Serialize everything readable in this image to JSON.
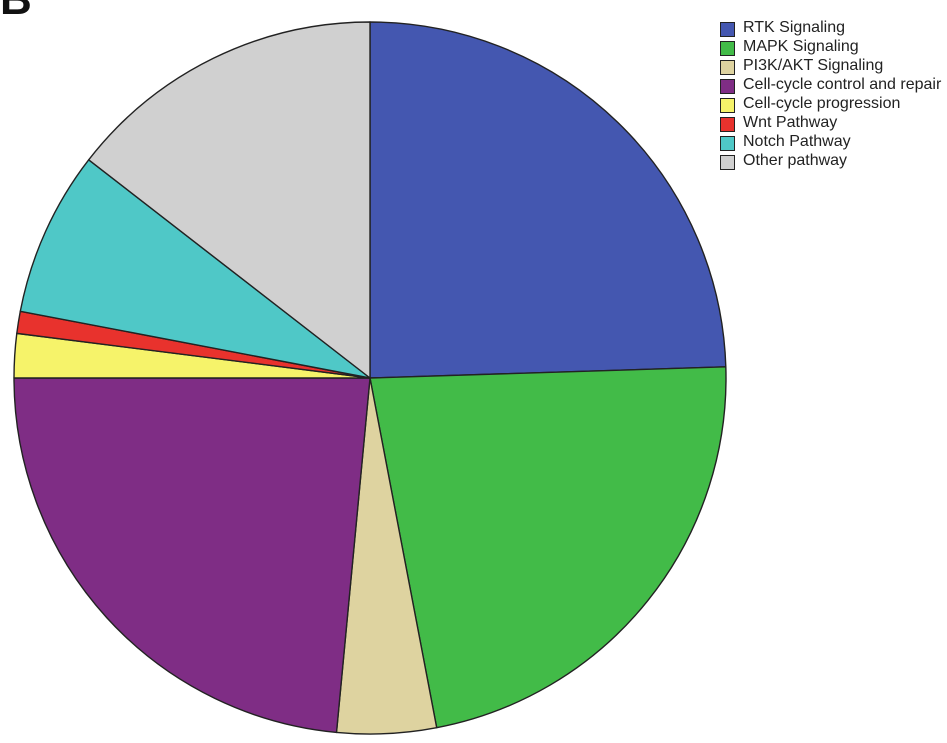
{
  "panel_label": "B",
  "chart_data": {
    "type": "pie",
    "slices": [
      {
        "label": "RTK Signaling",
        "value": 24.5,
        "color": "#4457b0"
      },
      {
        "label": "MAPK Signaling",
        "value": 22.5,
        "color": "#42bb48"
      },
      {
        "label": "PI3K/AKT Signaling",
        "value": 4.5,
        "color": "#ded3a0"
      },
      {
        "label": "Cell-cycle control and repair",
        "value": 23.5,
        "color": "#7f2d85"
      },
      {
        "label": "Cell-cycle progression",
        "value": 2.0,
        "color": "#f6f36a"
      },
      {
        "label": "Wnt Pathway",
        "value": 1.0,
        "color": "#e8322d"
      },
      {
        "label": "Notch Pathway",
        "value": 7.5,
        "color": "#4fc8c7"
      },
      {
        "label": "Other pathway",
        "value": 14.5,
        "color": "#d0d0d0"
      }
    ],
    "start_angle_deg": 0,
    "direction": "clockwise",
    "legend_position": "top-right"
  }
}
